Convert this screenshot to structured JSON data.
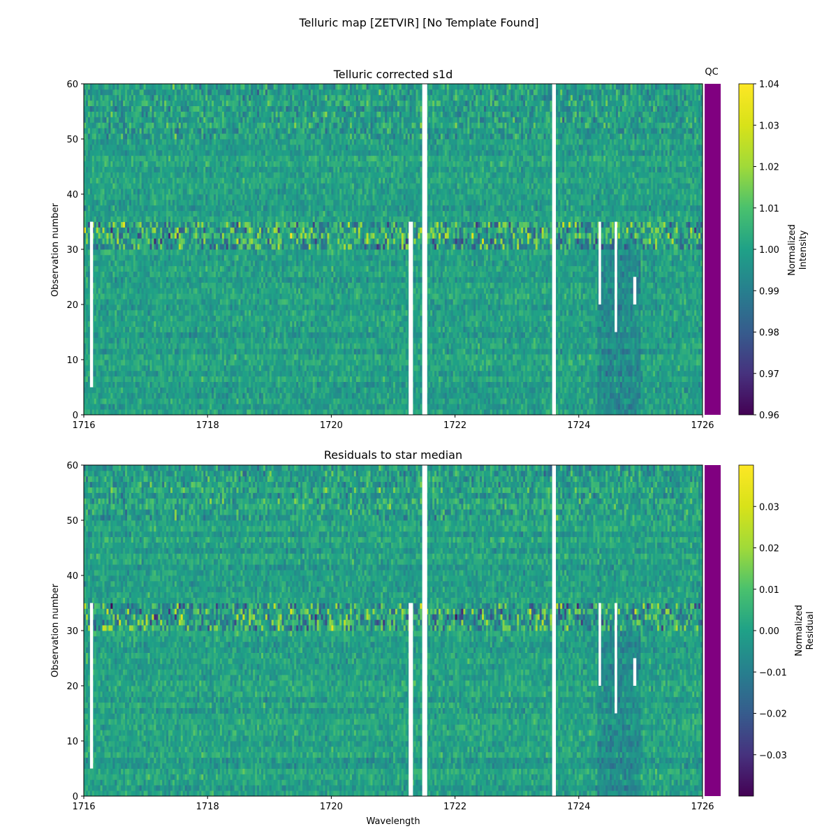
{
  "suptitle": "Telluric map [ZETVIR] [No Template Found]",
  "chart_data": [
    {
      "type": "heatmap",
      "title": "Telluric corrected s1d",
      "xlabel": "",
      "ylabel": "Observation number",
      "xlim": [
        1716,
        1726
      ],
      "ylim": [
        0,
        60
      ],
      "x_ticks": [
        "1716",
        "1718",
        "1720",
        "1722",
        "1724",
        "1726"
      ],
      "y_ticks": [
        "0",
        "10",
        "20",
        "30",
        "40",
        "50",
        "60"
      ],
      "colormap": "viridis",
      "colorbar": {
        "label_lines": [
          "Normalized",
          "Intensity"
        ],
        "range": [
          0.96,
          1.04
        ],
        "ticks": [
          "0.96",
          "0.97",
          "0.98",
          "0.99",
          "1.00",
          "1.01",
          "1.02",
          "1.03",
          "1.04"
        ]
      },
      "noisy_rows": [
        31,
        32,
        33,
        34,
        35
      ],
      "masked_regions": [
        {
          "x": [
            1716.1,
            1716.15
          ],
          "obs": [
            5,
            35
          ]
        },
        {
          "x": [
            1721.25,
            1721.32
          ],
          "obs": [
            0,
            35
          ]
        },
        {
          "x": [
            1721.47,
            1721.55
          ],
          "obs": [
            0,
            60
          ]
        },
        {
          "x": [
            1723.57,
            1723.63
          ],
          "obs": [
            0,
            60
          ]
        },
        {
          "x": [
            1724.32,
            1724.36
          ],
          "obs": [
            20,
            35
          ]
        },
        {
          "x": [
            1724.58,
            1724.62
          ],
          "obs": [
            15,
            35
          ]
        },
        {
          "x": [
            1724.88,
            1724.93
          ],
          "obs": [
            20,
            25
          ]
        }
      ]
    },
    {
      "type": "heatmap",
      "title": "Residuals to star median",
      "xlabel": "Wavelength",
      "ylabel": "Observation number",
      "xlim": [
        1716,
        1726
      ],
      "ylim": [
        0,
        60
      ],
      "x_ticks": [
        "1716",
        "1718",
        "1720",
        "1722",
        "1724",
        "1726"
      ],
      "y_ticks": [
        "0",
        "10",
        "20",
        "30",
        "40",
        "50",
        "60"
      ],
      "colormap": "viridis",
      "colorbar": {
        "label_lines": [
          "Normalized",
          "Residual"
        ],
        "range": [
          -0.04,
          0.04
        ],
        "ticks": [
          "−0.03",
          "−0.02",
          "−0.01",
          "0.00",
          "0.01",
          "0.02",
          "0.03"
        ],
        "tick_values": [
          -0.03,
          -0.02,
          -0.01,
          0.0,
          0.01,
          0.02,
          0.03
        ]
      },
      "noisy_rows": [
        31,
        32,
        33,
        34,
        35
      ],
      "masked_regions": [
        {
          "x": [
            1716.1,
            1716.15
          ],
          "obs": [
            5,
            35
          ]
        },
        {
          "x": [
            1721.25,
            1721.32
          ],
          "obs": [
            0,
            35
          ]
        },
        {
          "x": [
            1721.47,
            1721.55
          ],
          "obs": [
            0,
            60
          ]
        },
        {
          "x": [
            1723.57,
            1723.63
          ],
          "obs": [
            0,
            60
          ]
        },
        {
          "x": [
            1724.32,
            1724.36
          ],
          "obs": [
            20,
            35
          ]
        },
        {
          "x": [
            1724.58,
            1724.62
          ],
          "obs": [
            15,
            35
          ]
        },
        {
          "x": [
            1724.88,
            1724.93
          ],
          "obs": [
            20,
            25
          ]
        }
      ]
    }
  ],
  "qc": {
    "label": "QC",
    "color": "#800080"
  }
}
